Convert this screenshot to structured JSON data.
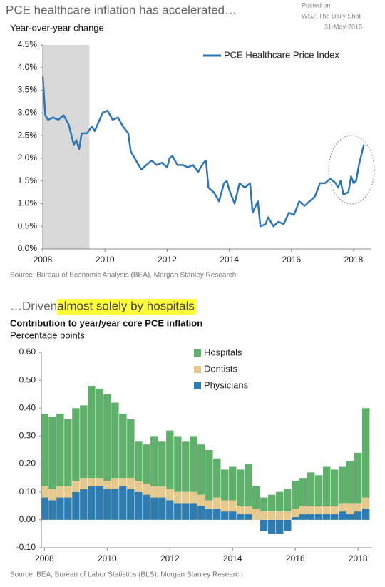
{
  "chart_data": [
    {
      "type": "line",
      "title": "PCE healthcare inflation has accelerated…",
      "subtitle": "Year-over-year change",
      "source": "Source: Bureau of Economic Analysis (BEA), Morgan Stanley Research",
      "annotations": [
        "Posted on",
        "WSJ: The Daily Shot",
        "31-May-2018"
      ],
      "shaded_x": [
        2008,
        2009.5
      ],
      "x": [
        2008.0,
        2008.08,
        2008.17,
        2008.33,
        2008.5,
        2008.67,
        2008.83,
        2009.0,
        2009.08,
        2009.17,
        2009.25,
        2009.42,
        2009.58,
        2009.67,
        2009.83,
        2009.92,
        2010.08,
        2010.25,
        2010.42,
        2010.58,
        2010.75,
        2010.83,
        2011.0,
        2011.17,
        2011.33,
        2011.5,
        2011.67,
        2011.83,
        2012.0,
        2012.08,
        2012.17,
        2012.33,
        2012.5,
        2012.67,
        2012.83,
        2013.0,
        2013.17,
        2013.25,
        2013.33,
        2013.5,
        2013.67,
        2013.83,
        2013.92,
        2014.0,
        2014.17,
        2014.33,
        2014.5,
        2014.67,
        2014.75,
        2014.92,
        2015.0,
        2015.17,
        2015.25,
        2015.42,
        2015.58,
        2015.75,
        2015.92,
        2016.08,
        2016.25,
        2016.42,
        2016.58,
        2016.75,
        2016.92,
        2017.08,
        2017.25,
        2017.42,
        2017.5,
        2017.58,
        2017.67,
        2017.83,
        2017.92,
        2018.0,
        2018.08,
        2018.17,
        2018.33
      ],
      "series": [
        {
          "name": "PCE Healthcare Price Index",
          "color": "#2e75b6",
          "values": [
            3.8,
            2.95,
            2.85,
            2.9,
            2.85,
            2.95,
            2.75,
            2.3,
            2.4,
            2.2,
            2.55,
            2.55,
            2.7,
            2.6,
            2.85,
            3.0,
            3.05,
            2.85,
            2.9,
            2.7,
            2.55,
            2.15,
            1.95,
            1.75,
            1.85,
            1.95,
            1.85,
            1.9,
            1.8,
            2.0,
            2.05,
            1.85,
            1.85,
            1.8,
            1.85,
            1.7,
            1.9,
            1.95,
            1.35,
            1.25,
            1.05,
            1.45,
            1.5,
            1.3,
            1.0,
            1.45,
            1.35,
            1.45,
            0.8,
            1.05,
            0.5,
            0.55,
            0.7,
            0.5,
            0.6,
            0.55,
            0.8,
            0.75,
            1.05,
            0.95,
            1.05,
            1.15,
            1.45,
            1.45,
            1.55,
            1.45,
            1.35,
            1.5,
            1.2,
            1.25,
            1.6,
            1.45,
            1.5,
            1.85,
            2.3
          ]
        }
      ],
      "xlim": [
        2008,
        2018.55
      ],
      "xticks": [
        2008,
        2010,
        2012,
        2014,
        2016,
        2018
      ],
      "ylim": [
        0,
        4.5
      ],
      "yticks": [
        {
          "value": 0,
          "label": "0.0%"
        },
        {
          "value": 0.5,
          "label": "0.5%"
        },
        {
          "value": 1,
          "label": "1.0%"
        },
        {
          "value": 1.5,
          "label": "1.5%"
        },
        {
          "value": 2,
          "label": "2.0%"
        },
        {
          "value": 2.5,
          "label": "2.5%"
        },
        {
          "value": 3,
          "label": "3.0%"
        },
        {
          "value": 3.5,
          "label": "3.5%"
        },
        {
          "value": 4,
          "label": "4.0%"
        },
        {
          "value": 4.5,
          "label": "4.5%"
        }
      ]
    },
    {
      "type": "bar",
      "stacked": true,
      "headline": "…Driven ",
      "headline_highlight": "almost solely by hospitals",
      "title": "Contribution to year/year core PCE inflation",
      "subtitle": "Percentage points",
      "source": "Source: BEA, Bureau of Labor Statistics (BLS), Morgan Stanley Research",
      "x": [
        2008.0,
        2008.25,
        2008.5,
        2008.75,
        2009.0,
        2009.25,
        2009.5,
        2009.75,
        2010.0,
        2010.25,
        2010.5,
        2010.75,
        2011.0,
        2011.25,
        2011.5,
        2011.75,
        2012.0,
        2012.25,
        2012.5,
        2012.75,
        2013.0,
        2013.25,
        2013.5,
        2013.75,
        2014.0,
        2014.25,
        2014.5,
        2014.75,
        2015.0,
        2015.25,
        2015.5,
        2015.75,
        2016.0,
        2016.25,
        2016.5,
        2016.75,
        2017.0,
        2017.25,
        2017.5,
        2017.75,
        2018.0,
        2018.25
      ],
      "series": [
        {
          "name": "Hospitals",
          "color": "#5fb06b",
          "values": [
            0.26,
            0.26,
            0.26,
            0.24,
            0.26,
            0.26,
            0.33,
            0.32,
            0.31,
            0.27,
            0.23,
            0.21,
            0.14,
            0.14,
            0.18,
            0.16,
            0.21,
            0.2,
            0.18,
            0.2,
            0.18,
            0.18,
            0.14,
            0.11,
            0.12,
            0.13,
            0.15,
            0.08,
            0.05,
            0.06,
            0.07,
            0.08,
            0.1,
            0.1,
            0.12,
            0.11,
            0.14,
            0.13,
            0.13,
            0.15,
            0.18,
            0.32
          ]
        },
        {
          "name": "Dentists",
          "color": "#e6c98c",
          "values": [
            0.04,
            0.04,
            0.04,
            0.04,
            0.04,
            0.04,
            0.03,
            0.03,
            0.03,
            0.04,
            0.03,
            0.04,
            0.04,
            0.04,
            0.04,
            0.04,
            0.04,
            0.04,
            0.04,
            0.04,
            0.04,
            0.03,
            0.04,
            0.04,
            0.04,
            0.03,
            0.03,
            0.04,
            0.03,
            0.03,
            0.03,
            0.03,
            0.03,
            0.03,
            0.03,
            0.03,
            0.03,
            0.03,
            0.03,
            0.04,
            0.03,
            0.04
          ]
        },
        {
          "name": "Physicians",
          "color": "#2f7cb0",
          "values": [
            0.08,
            0.07,
            0.08,
            0.08,
            0.1,
            0.11,
            0.12,
            0.12,
            0.11,
            0.11,
            0.12,
            0.11,
            0.1,
            0.09,
            0.08,
            0.08,
            0.07,
            0.06,
            0.06,
            0.06,
            0.05,
            0.04,
            0.04,
            0.03,
            0.03,
            0.02,
            0.02,
            0,
            -0.04,
            -0.05,
            -0.05,
            -0.04,
            0.01,
            0.02,
            0.02,
            0.02,
            0.02,
            0.02,
            0.03,
            0.02,
            0.03,
            0.04
          ]
        }
      ],
      "xlim": [
        2007.9,
        2018.45
      ],
      "xticks": [
        2008,
        2010,
        2012,
        2014,
        2016,
        2018
      ],
      "ylim": [
        -0.1,
        0.6
      ],
      "yticks": [
        {
          "value": -0.1,
          "label": "-0.10"
        },
        {
          "value": 0,
          "label": "0.00"
        },
        {
          "value": 0.1,
          "label": "0.10"
        },
        {
          "value": 0.2,
          "label": "0.20"
        },
        {
          "value": 0.3,
          "label": "0.30"
        },
        {
          "value": 0.4,
          "label": "0.40"
        },
        {
          "value": 0.5,
          "label": "0.50"
        },
        {
          "value": 0.6,
          "label": "0.60"
        }
      ]
    }
  ]
}
